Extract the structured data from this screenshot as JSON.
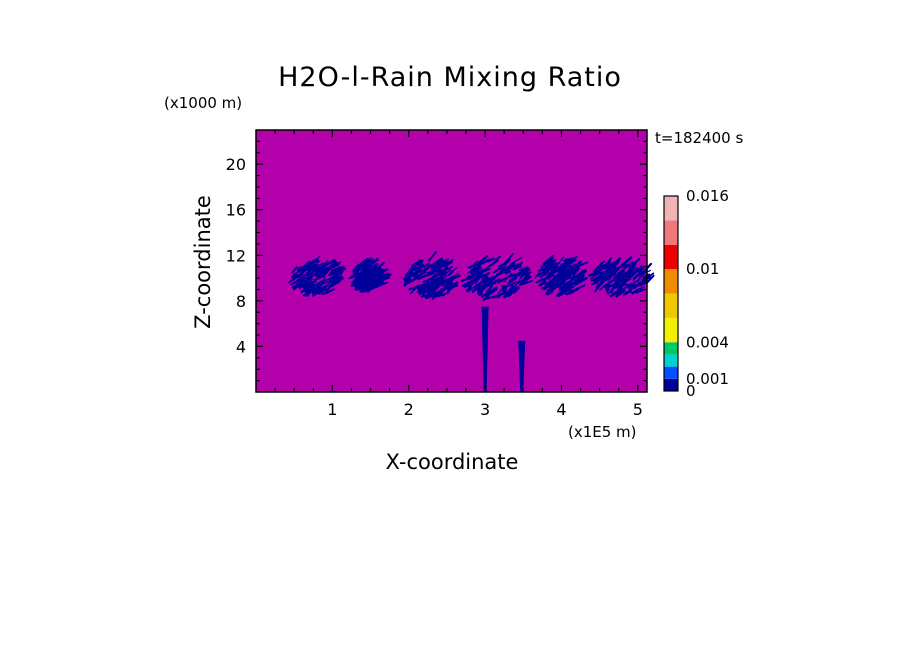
{
  "chart_data": {
    "type": "heatmap",
    "title": "H2O-l-Rain Mixing Ratio",
    "xlabel": "X-coordinate",
    "ylabel": "Z-coordinate",
    "x_unit": "(x1E5 m)",
    "y_unit": "(x1000 m)",
    "time_label": "t=182400 s",
    "xlim": [
      0,
      5.12
    ],
    "ylim": [
      0,
      23
    ],
    "xticks": [
      1,
      2,
      3,
      4,
      5
    ],
    "yticks": [
      4,
      8,
      12,
      16,
      20
    ],
    "background_value_color": "#b400aa",
    "colorbar": {
      "levels": [
        0,
        0.001,
        0.002,
        0.003,
        0.004,
        0.006,
        0.008,
        0.01,
        0.012,
        0.014,
        0.016
      ],
      "colors": [
        "#00009a",
        "#0050ff",
        "#00d2d2",
        "#00c864",
        "#f0f000",
        "#f0c800",
        "#f08c00",
        "#f00000",
        "#f07878",
        "#f0b4b4"
      ],
      "labeled_ticks": [
        {
          "value": 0,
          "label": "0"
        },
        {
          "value": 0.001,
          "label": "0.001"
        },
        {
          "value": 0.004,
          "label": "0.004"
        },
        {
          "value": 0.01,
          "label": "0.01"
        },
        {
          "value": 0.016,
          "label": "0.016"
        }
      ]
    },
    "rain_regions": [
      {
        "x_center": 0.75,
        "x_half_width": 0.32,
        "z_center": 9.8,
        "z_half_height": 1.6,
        "max_value": 0.001
      },
      {
        "x_center": 1.42,
        "x_half_width": 0.2,
        "z_center": 10.0,
        "z_half_height": 1.4,
        "max_value": 0.001
      },
      {
        "x_center": 2.25,
        "x_half_width": 0.33,
        "z_center": 9.8,
        "z_half_height": 1.9,
        "max_value": 0.001
      },
      {
        "x_center": 3.1,
        "x_half_width": 0.42,
        "z_center": 9.8,
        "z_half_height": 2.0,
        "max_value": 0.001
      },
      {
        "x_center": 3.95,
        "x_half_width": 0.3,
        "z_center": 10.0,
        "z_half_height": 1.8,
        "max_value": 0.001
      },
      {
        "x_center": 4.72,
        "x_half_width": 0.4,
        "z_center": 9.8,
        "z_half_height": 1.6,
        "max_value": 0.001
      }
    ],
    "rain_shafts": [
      {
        "x": 3.0,
        "z_bottom": 0,
        "z_top": 7.5
      },
      {
        "x": 3.48,
        "z_bottom": 0,
        "z_top": 4.5
      }
    ]
  }
}
